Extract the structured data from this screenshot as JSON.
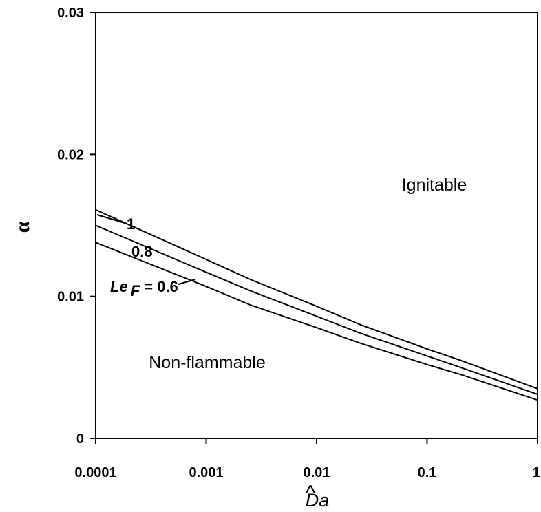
{
  "chart_data": {
    "type": "line",
    "x_scale": "log",
    "xlim": [
      0.0001,
      1
    ],
    "ylim": [
      0,
      0.03
    ],
    "grid": false,
    "xlabel": "Da",
    "ylabel": "α",
    "x_tick_labels": [
      "0.0001",
      "0.001",
      "0.01",
      "0.1",
      "1"
    ],
    "y_tick_labels": [
      "0",
      "0.01",
      "0.02",
      "0.03"
    ],
    "region_labels": [
      "Ignitable",
      "Non-flammable"
    ],
    "curve_labels": {
      "prefix": "Le",
      "subscript": "F",
      "suffix": " = 0.6",
      "mid": "0.8",
      "top": "1"
    },
    "series": [
      {
        "x": [
          0.0001,
          0.001,
          0.0025,
          0.01,
          0.025,
          0.1,
          0.2,
          1
        ],
        "y": [
          0.0161,
          0.0126,
          0.0112,
          0.0093,
          0.008,
          0.0063,
          0.0055,
          0.0035
        ]
      },
      {
        "x": [
          0.0001,
          0.001,
          0.0025,
          0.01,
          0.025,
          0.1,
          0.2,
          1
        ],
        "y": [
          0.015,
          0.0117,
          0.0104,
          0.0086,
          0.0074,
          0.0058,
          0.005,
          0.0031
        ]
      },
      {
        "x": [
          0.0001,
          0.001,
          0.0025,
          0.01,
          0.025,
          0.1,
          0.2,
          1
        ],
        "y": [
          0.0138,
          0.0107,
          0.0094,
          0.0078,
          0.0067,
          0.0052,
          0.0045,
          0.0027
        ]
      }
    ]
  }
}
